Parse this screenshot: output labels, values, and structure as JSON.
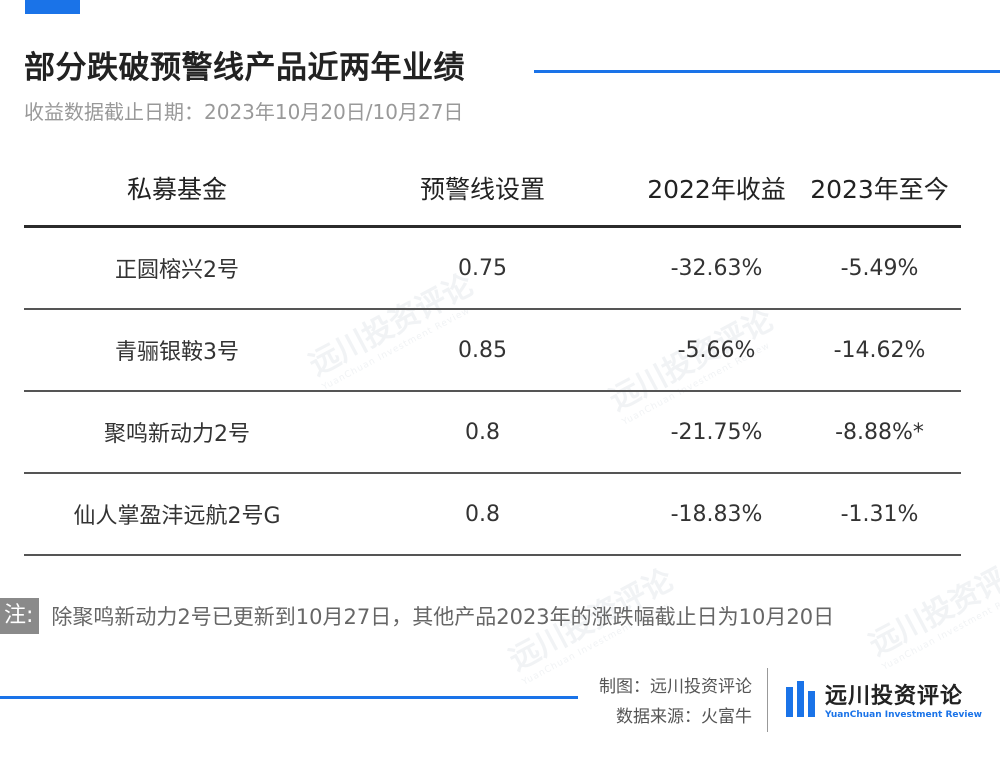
{
  "header": {
    "title": "部分跌破预警线产品近两年业绩",
    "subtitle": "收益数据截止日期：2023年10月20日/10月27日"
  },
  "chart_data": {
    "type": "table",
    "columns": [
      "私募基金",
      "预警线设置",
      "2022年收益",
      "2023年至今"
    ],
    "rows": [
      [
        "正圆榕兴2号",
        "0.75",
        "-32.63%",
        "-5.49%"
      ],
      [
        "青骊银鞍3号",
        "0.85",
        "-5.66%",
        "-14.62%"
      ],
      [
        "聚鸣新动力2号",
        "0.8",
        "-21.75%",
        "-8.88%*"
      ],
      [
        "仙人掌盈沣远航2号G",
        "0.8",
        "-18.83%",
        "-1.31%"
      ]
    ]
  },
  "note": {
    "tag": "注:",
    "text": "除聚鸣新动力2号已更新到10月27日，其他产品2023年的涨跌幅截止日为10月20日"
  },
  "credits": {
    "made_by": "制图：远川投资评论",
    "source": "数据来源：火富牛"
  },
  "logo": {
    "cn": "远川投资评论",
    "en": "YuanChuan Investment Review"
  },
  "watermark": {
    "cn": "远川投资评论",
    "en": "YuanChuan Investment Review"
  },
  "colors": {
    "accent": "#1a73e8",
    "note_tag": "#8a8a8a"
  }
}
